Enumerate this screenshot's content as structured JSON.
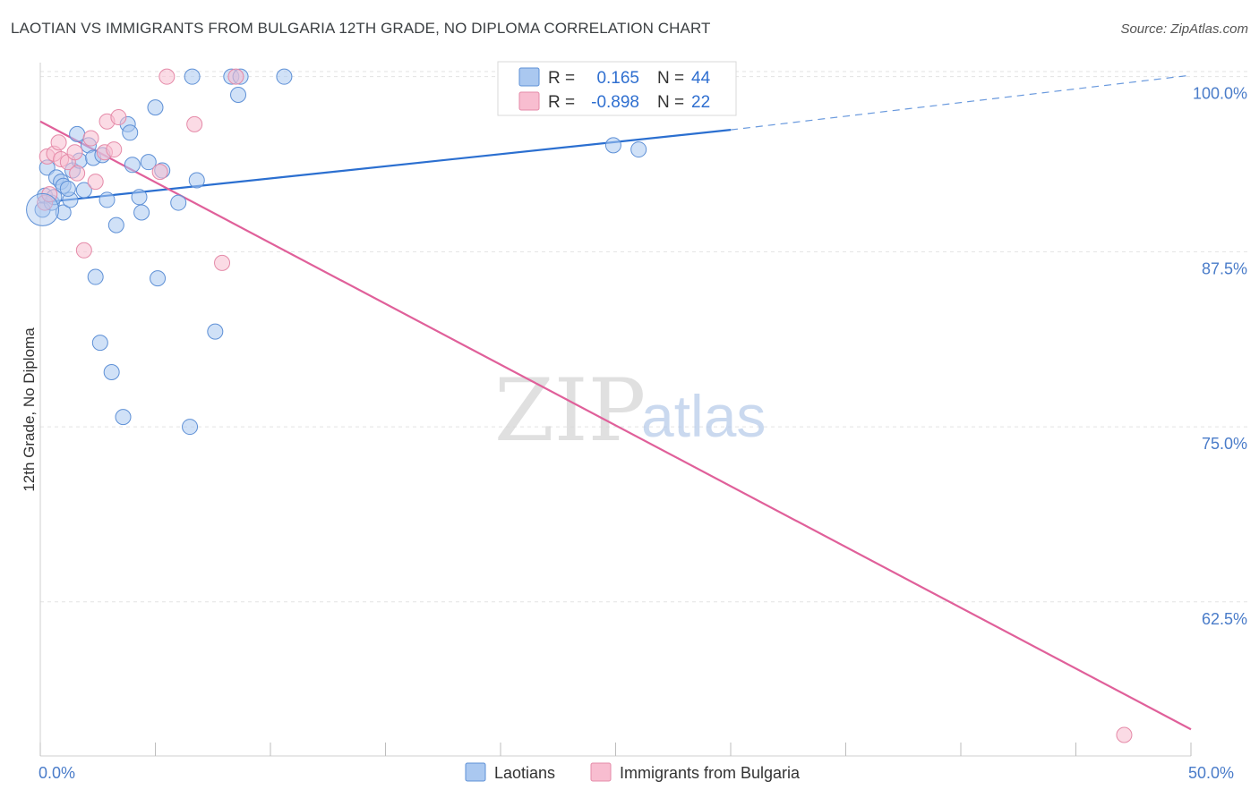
{
  "header": {
    "title": "LAOTIAN VS IMMIGRANTS FROM BULGARIA 12TH GRADE, NO DIPLOMA CORRELATION CHART",
    "source": "Source: ZipAtlas.com"
  },
  "watermark": {
    "zip": "ZIP",
    "atlas": "atlas"
  },
  "colors": {
    "blue_fill": "#aac8f0",
    "blue_stroke": "#5e90d6",
    "blue_line": "#2b6fd0",
    "pink_fill": "#f8bdd0",
    "pink_stroke": "#e58aa8",
    "pink_line": "#e0609a",
    "grid": "#e3e3e3",
    "tick_text": "#4a7cc9"
  },
  "stats_legend": {
    "rows": [
      {
        "r_label": "R =",
        "r_value": "0.165",
        "n_label": "N =",
        "n_value": "44",
        "series": "Laotians"
      },
      {
        "r_label": "R =",
        "r_value": "-0.898",
        "n_label": "N =",
        "n_value": "22",
        "series": "Immigrants from Bulgaria"
      }
    ]
  },
  "chart_data": {
    "type": "scatter",
    "title": "LAOTIAN VS IMMIGRANTS FROM BULGARIA 12TH GRADE, NO DIPLOMA CORRELATION CHART",
    "xlabel": "",
    "ylabel": "12th Grade, No Diploma",
    "xlim": [
      0,
      50
    ],
    "ylim": [
      51.5,
      101
    ],
    "x_tick_labels": [
      {
        "value": 0,
        "label": "0.0%"
      },
      {
        "value": 50,
        "label": "50.0%"
      }
    ],
    "x_minor_ticks": [
      0,
      5,
      10,
      15,
      20,
      25,
      30,
      35,
      40,
      45,
      50
    ],
    "y_ticks": [
      {
        "value": 100,
        "label": "100.0%"
      },
      {
        "value": 87.5,
        "label": "87.5%"
      },
      {
        "value": 75,
        "label": "75.0%"
      },
      {
        "value": 62.5,
        "label": "62.5%"
      }
    ],
    "grid": true,
    "legend_position": "bottom-center",
    "series": [
      {
        "name": "Laotians",
        "color": "#aac8f0",
        "points": [
          [
            0.1,
            90.5
          ],
          [
            0.2,
            91.5
          ],
          [
            0.3,
            93.5
          ],
          [
            0.5,
            91
          ],
          [
            0.7,
            92.8
          ],
          [
            0.9,
            92.5
          ],
          [
            1.0,
            92.2
          ],
          [
            1.0,
            90.3
          ],
          [
            1.3,
            91.2
          ],
          [
            1.4,
            93.3
          ],
          [
            1.6,
            95.9
          ],
          [
            1.7,
            94.0
          ],
          [
            1.9,
            91.9
          ],
          [
            2.1,
            95.1
          ],
          [
            2.3,
            94.2
          ],
          [
            2.4,
            85.7
          ],
          [
            2.6,
            81.0
          ],
          [
            2.7,
            94.4
          ],
          [
            2.9,
            91.2
          ],
          [
            3.1,
            78.9
          ],
          [
            3.3,
            89.4
          ],
          [
            3.6,
            75.7
          ],
          [
            3.8,
            96.6
          ],
          [
            3.9,
            96.0
          ],
          [
            4.0,
            93.7
          ],
          [
            4.3,
            91.4
          ],
          [
            4.4,
            90.3
          ],
          [
            4.7,
            93.9
          ],
          [
            5.0,
            97.8
          ],
          [
            5.1,
            85.6
          ],
          [
            5.3,
            93.3
          ],
          [
            6.0,
            91.0
          ],
          [
            6.5,
            75.0
          ],
          [
            6.6,
            100.0
          ],
          [
            6.8,
            92.6
          ],
          [
            7.6,
            81.8
          ],
          [
            8.3,
            100.0
          ],
          [
            8.6,
            98.7
          ],
          [
            8.7,
            100.0
          ],
          [
            10.6,
            100.0
          ],
          [
            24.9,
            95.1
          ],
          [
            26.0,
            94.8
          ],
          [
            0.6,
            91.4
          ],
          [
            1.2,
            92.0
          ]
        ],
        "trend": {
          "x": [
            0,
            30
          ],
          "y": [
            91.0,
            96.2
          ],
          "dashed_extension": {
            "x": [
              30,
              50
            ],
            "y": [
              96.2,
              100.1
            ]
          }
        }
      },
      {
        "name": "Immigrants from Bulgaria",
        "color": "#f8bdd0",
        "points": [
          [
            0.2,
            91.0
          ],
          [
            0.3,
            94.3
          ],
          [
            0.4,
            91.6
          ],
          [
            0.6,
            94.5
          ],
          [
            0.8,
            95.3
          ],
          [
            0.9,
            94.1
          ],
          [
            1.2,
            93.9
          ],
          [
            1.5,
            94.6
          ],
          [
            1.6,
            93.1
          ],
          [
            1.9,
            87.6
          ],
          [
            2.2,
            95.6
          ],
          [
            2.4,
            92.5
          ],
          [
            2.8,
            94.6
          ],
          [
            2.9,
            96.8
          ],
          [
            3.2,
            94.8
          ],
          [
            3.4,
            97.1
          ],
          [
            5.2,
            93.2
          ],
          [
            5.5,
            100.0
          ],
          [
            6.7,
            96.6
          ],
          [
            7.9,
            86.7
          ],
          [
            8.5,
            100.0
          ],
          [
            47.1,
            53.0
          ]
        ],
        "trend": {
          "x": [
            0,
            50
          ],
          "y": [
            96.8,
            53.4
          ]
        }
      }
    ]
  }
}
